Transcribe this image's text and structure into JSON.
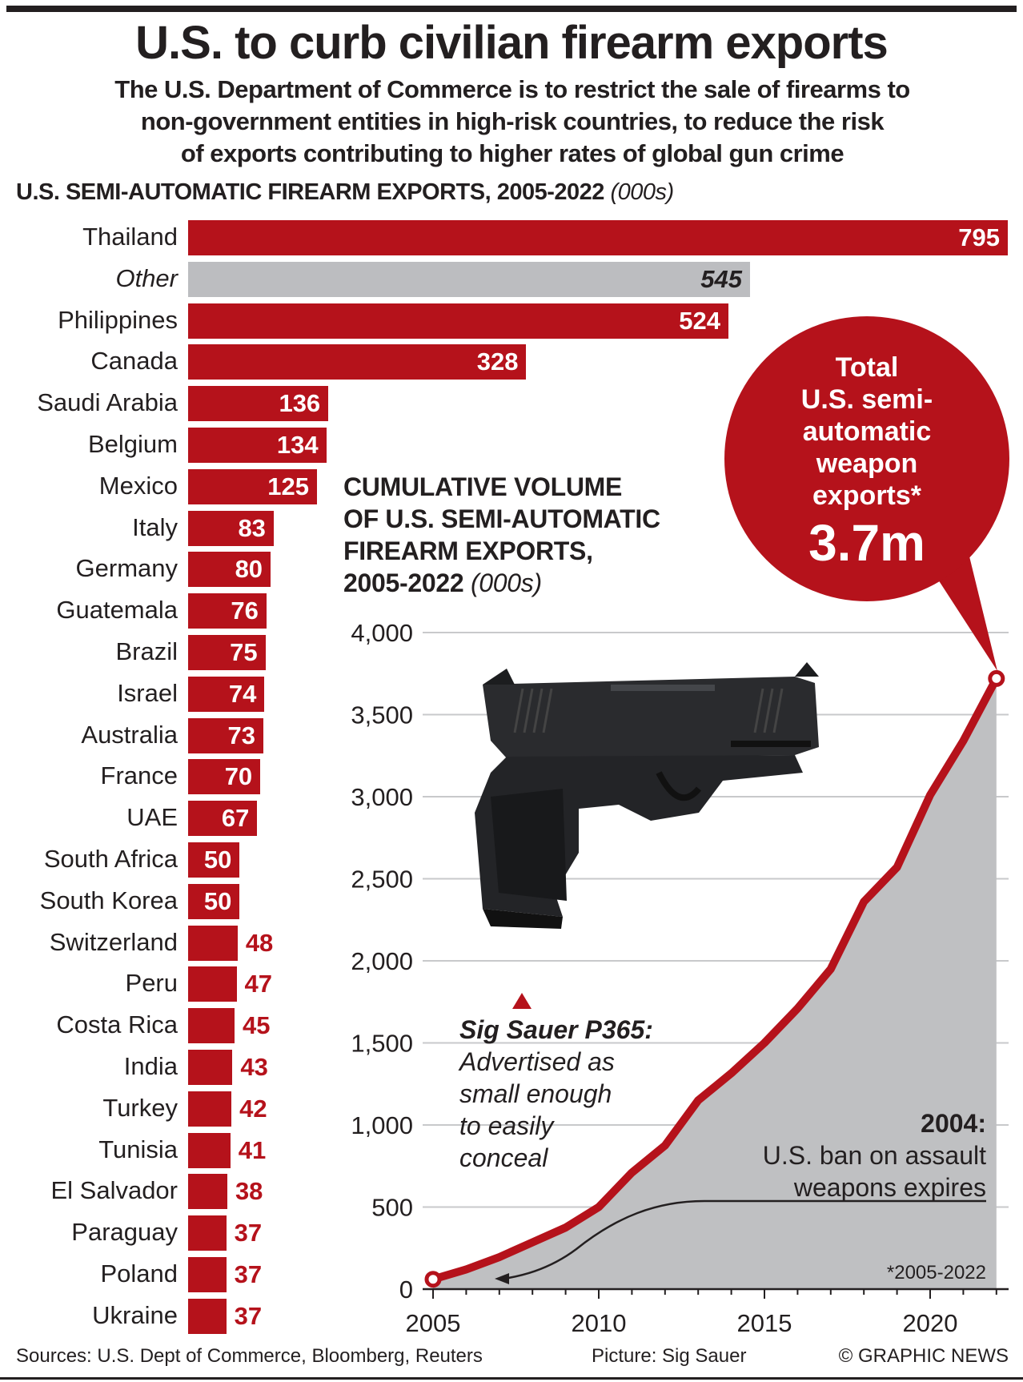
{
  "header": {
    "title": "U.S. to curb civilian firearm exports",
    "subtitle_lines": [
      "The U.S. Department of Commerce is to restrict the sale of firearms to",
      "non-government entities in high-risk countries, to reduce the risk",
      "of exports contributing to higher rates of global gun crime"
    ]
  },
  "bubble": {
    "lines": [
      "Total",
      "U.S. semi-",
      "automatic",
      "weapon",
      "exports*"
    ],
    "value": "3.7m"
  },
  "annotations": {
    "gun_title": "Sig Sauer P365:",
    "gun_lines": [
      "Advertised as",
      "small enough",
      "to easily",
      "conceal"
    ],
    "ban_year": "2004:",
    "ban_lines": [
      "U.S. ban on assault",
      "weapons expires"
    ],
    "footnote": "*2005-2022"
  },
  "footer": {
    "sources": "Sources: U.S. Dept of Commerce, Bloomberg, Reuters",
    "picture": "Picture: Sig Sauer",
    "credit": "© GRAPHIC NEWS"
  },
  "colors": {
    "red": "#b5121b",
    "grey": "#bcbdc0",
    "area": "#bfc0c2",
    "text": "#231f20"
  },
  "chart_data": [
    {
      "type": "bar",
      "orientation": "horizontal",
      "title": "U.S. SEMI-AUTOMATIC FIREARM EXPORTS, 2005-2022",
      "unit": "(000s)",
      "categories": [
        "Thailand",
        "Other",
        "Philippines",
        "Canada",
        "Saudi Arabia",
        "Belgium",
        "Mexico",
        "Italy",
        "Germany",
        "Guatemala",
        "Brazil",
        "Israel",
        "Australia",
        "France",
        "UAE",
        "South Africa",
        "South Korea",
        "Switzerland",
        "Peru",
        "Costa Rica",
        "India",
        "Turkey",
        "Tunisia",
        "El Salvador",
        "Paraguay",
        "Poland",
        "Ukraine"
      ],
      "values": [
        795,
        545,
        524,
        328,
        136,
        134,
        125,
        83,
        80,
        76,
        75,
        74,
        73,
        70,
        67,
        50,
        50,
        48,
        47,
        45,
        43,
        42,
        41,
        38,
        37,
        37,
        37
      ],
      "highlight_grey": [
        "Other"
      ]
    },
    {
      "type": "area",
      "title_lines": [
        "CUMULATIVE VOLUME",
        "OF U.S. SEMI-AUTOMATIC",
        "FIREARM EXPORTS,",
        "2005-2022"
      ],
      "unit": "(000s)",
      "x": [
        2005,
        2006,
        2007,
        2008,
        2009,
        2010,
        2011,
        2012,
        2013,
        2014,
        2015,
        2016,
        2017,
        2018,
        2019,
        2020,
        2021,
        2022
      ],
      "y": [
        60,
        120,
        195,
        285,
        375,
        500,
        710,
        875,
        1150,
        1315,
        1500,
        1710,
        1950,
        2360,
        2570,
        3010,
        3340,
        3720
      ],
      "xlim": [
        2005,
        2022
      ],
      "ylim": [
        0,
        4000
      ],
      "yticks": [
        0,
        500,
        1000,
        1500,
        2000,
        2500,
        3000,
        3500,
        4000
      ],
      "ytick_labels": [
        "0",
        "500",
        "1,000",
        "1,500",
        "2,000",
        "2,500",
        "3,000",
        "3,500",
        "4,000"
      ],
      "xtick_labels": [
        "2005",
        "2010",
        "2015",
        "2020"
      ],
      "grid": true
    }
  ]
}
